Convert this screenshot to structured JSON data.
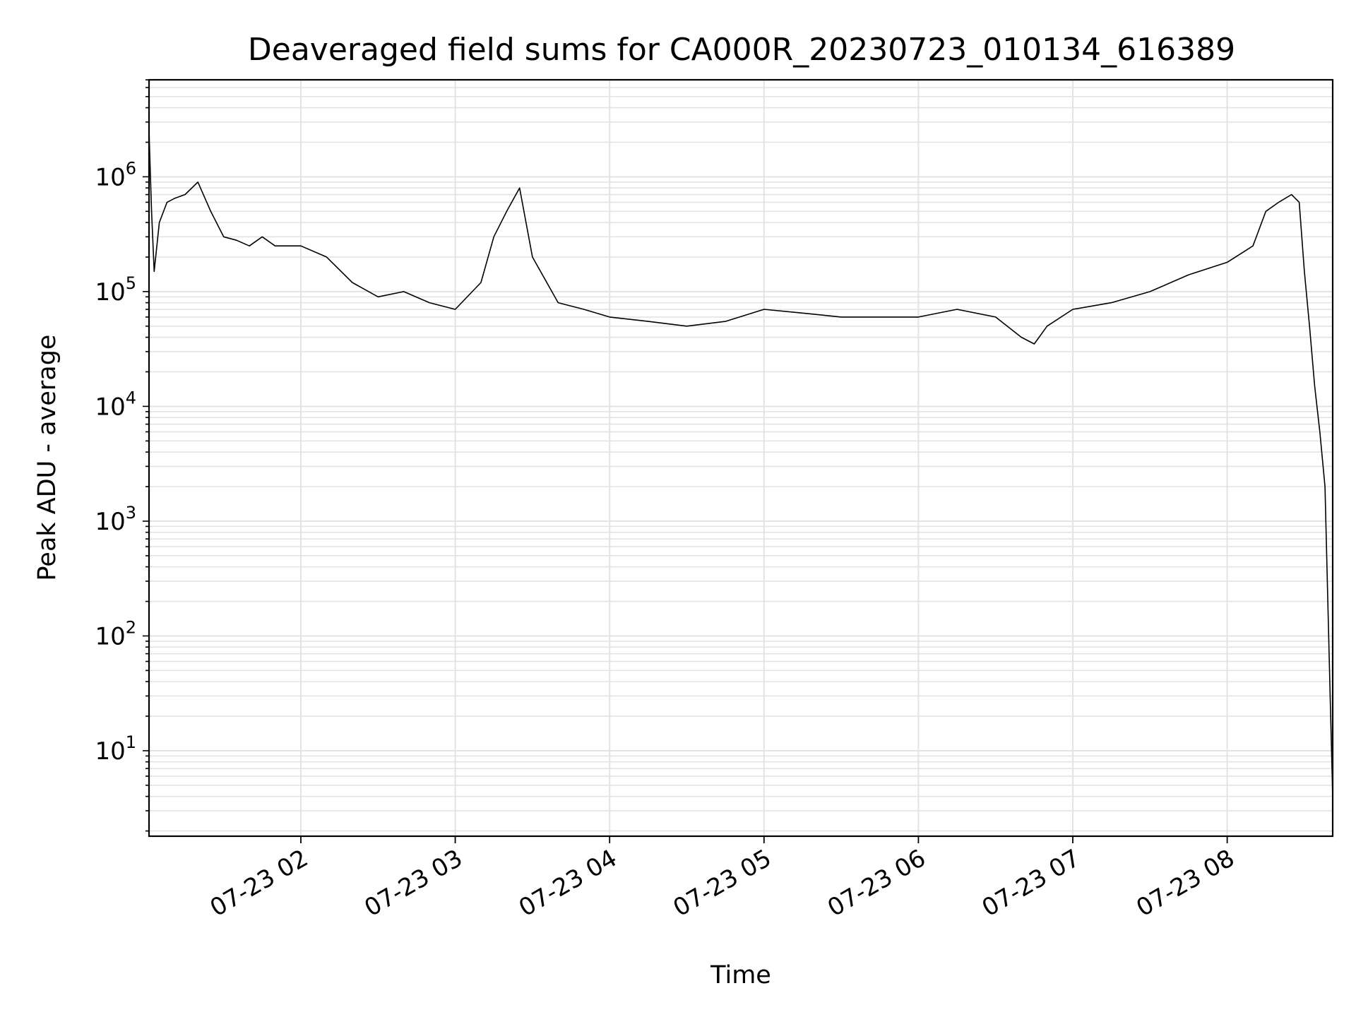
{
  "chart_data": {
    "type": "line",
    "title": "Deaveraged field sums for CA000R_20230723_010134_616389",
    "xlabel": "Time",
    "ylabel": "Peak ADU - average",
    "yscale": "log",
    "grid": true,
    "line_color": "#000000",
    "grid_color": "#e3e3e3",
    "xlim": [
      "2023-07-23 01:01",
      "2023-07-23 08:41"
    ],
    "ylim": [
      1.8,
      7000000
    ],
    "x_ticks": [
      {
        "value": "2023-07-23 02:00",
        "label": "07-23 02"
      },
      {
        "value": "2023-07-23 03:00",
        "label": "07-23 03"
      },
      {
        "value": "2023-07-23 04:00",
        "label": "07-23 04"
      },
      {
        "value": "2023-07-23 05:00",
        "label": "07-23 05"
      },
      {
        "value": "2023-07-23 06:00",
        "label": "07-23 06"
      },
      {
        "value": "2023-07-23 07:00",
        "label": "07-23 07"
      },
      {
        "value": "2023-07-23 08:00",
        "label": "07-23 08"
      }
    ],
    "y_ticks": [
      {
        "value": 10,
        "base": "10",
        "exp": "1"
      },
      {
        "value": 100,
        "base": "10",
        "exp": "2"
      },
      {
        "value": 1000,
        "base": "10",
        "exp": "3"
      },
      {
        "value": 10000,
        "base": "10",
        "exp": "4"
      },
      {
        "value": 100000,
        "base": "10",
        "exp": "5"
      },
      {
        "value": 1000000,
        "base": "10",
        "exp": "6"
      }
    ],
    "series": [
      {
        "x": [
          "2023-07-23 01:01",
          "2023-07-23 01:02",
          "2023-07-23 01:03",
          "2023-07-23 01:05",
          "2023-07-23 01:08",
          "2023-07-23 01:11",
          "2023-07-23 01:15",
          "2023-07-23 01:20",
          "2023-07-23 01:25",
          "2023-07-23 01:30",
          "2023-07-23 01:35",
          "2023-07-23 01:40",
          "2023-07-23 01:45",
          "2023-07-23 01:50",
          "2023-07-23 02:00",
          "2023-07-23 02:10",
          "2023-07-23 02:20",
          "2023-07-23 02:30",
          "2023-07-23 02:40",
          "2023-07-23 02:50",
          "2023-07-23 03:00",
          "2023-07-23 03:10",
          "2023-07-23 03:15",
          "2023-07-23 03:20",
          "2023-07-23 03:25",
          "2023-07-23 03:30",
          "2023-07-23 03:40",
          "2023-07-23 03:50",
          "2023-07-23 04:00",
          "2023-07-23 04:15",
          "2023-07-23 04:30",
          "2023-07-23 04:45",
          "2023-07-23 05:00",
          "2023-07-23 05:15",
          "2023-07-23 05:30",
          "2023-07-23 05:45",
          "2023-07-23 06:00",
          "2023-07-23 06:15",
          "2023-07-23 06:30",
          "2023-07-23 06:40",
          "2023-07-23 06:45",
          "2023-07-23 06:50",
          "2023-07-23 07:00",
          "2023-07-23 07:15",
          "2023-07-23 07:30",
          "2023-07-23 07:45",
          "2023-07-23 08:00",
          "2023-07-23 08:10",
          "2023-07-23 08:15",
          "2023-07-23 08:20",
          "2023-07-23 08:25",
          "2023-07-23 08:28",
          "2023-07-23 08:30",
          "2023-07-23 08:32",
          "2023-07-23 08:34",
          "2023-07-23 08:36",
          "2023-07-23 08:38",
          "2023-07-23 08:40",
          "2023-07-23 08:41"
        ],
        "y": [
          2500000,
          500000,
          150000,
          400000,
          600000,
          650000,
          700000,
          900000,
          500000,
          300000,
          280000,
          250000,
          300000,
          250000,
          250000,
          200000,
          120000,
          90000,
          100000,
          80000,
          70000,
          120000,
          300000,
          500000,
          800000,
          200000,
          80000,
          70000,
          60000,
          55000,
          50000,
          55000,
          70000,
          65000,
          60000,
          60000,
          60000,
          70000,
          60000,
          40000,
          35000,
          50000,
          70000,
          80000,
          100000,
          140000,
          180000,
          250000,
          500000,
          600000,
          700000,
          600000,
          150000,
          50000,
          15000,
          6000,
          2000,
          30,
          4
        ]
      }
    ]
  }
}
